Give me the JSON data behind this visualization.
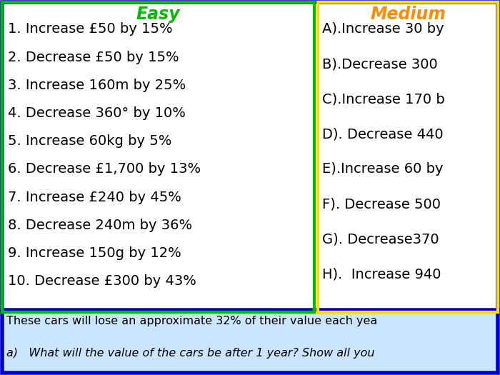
{
  "title_easy": "Easy",
  "title_medium": "Medium",
  "easy_items": [
    "1. Increase £50 by 15%",
    "2. Decrease £50 by 15%",
    "3. Increase 160m by 25%",
    "4. Decrease 360° by 10%",
    "5. Increase 60kg by 5%",
    "6. Decrease £1,700 by 13%",
    "7. Increase £240 by 45%",
    "8. Decrease 240m by 36%",
    "9. Increase 150g by 12%",
    "10. Decrease £300 by 43%"
  ],
  "medium_items": [
    "A).Increase 30 by",
    "B).Decrease 300",
    "C).Increase 170 b",
    "D). Decrease 440",
    "E).Increase 60 by",
    "F). Decrease 500",
    "G). Decrease370",
    "H).  Increase 940"
  ],
  "bottom_text_line1": "These cars will lose an approximate 32% of their value each yea",
  "bottom_text_line2": "a)   What will the value of the cars be after 1 year? Show all you",
  "easy_title_color": "#00bb00",
  "medium_title_color": "#ff8c00",
  "text_color": "#000000",
  "easy_bg": "#ffffff",
  "medium_bg": "#ffffff",
  "bottom_bg": "#cce5ff",
  "easy_border_color": "#00bb00",
  "medium_border_color": "#ffdd00",
  "outer_border_color": "#0000cc",
  "separator_color_blue": "#0000cc",
  "separator_color_yellow": "#ffdd00",
  "font_size_title": 17,
  "font_size_items": 14,
  "font_size_bottom": 11.5
}
